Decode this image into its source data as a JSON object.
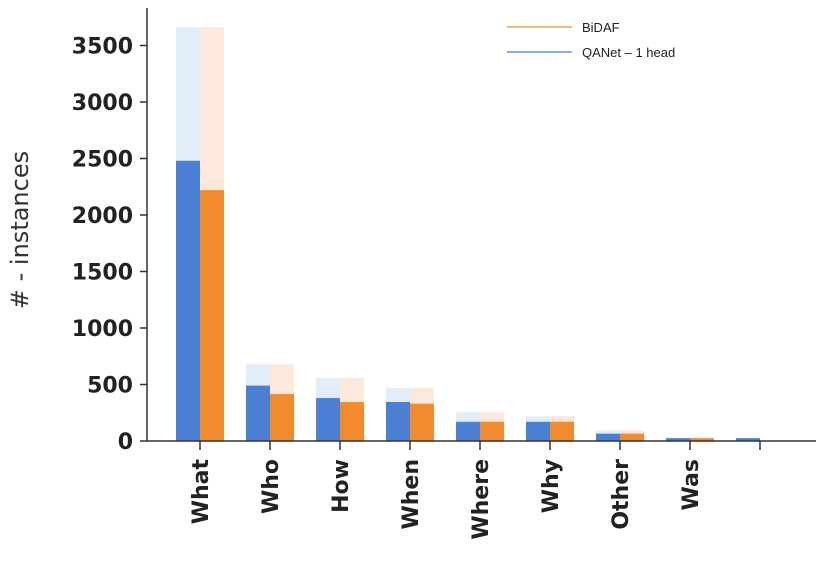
{
  "chart_data": {
    "type": "bar",
    "ylabel": "# - instances",
    "xlabel": "",
    "ylim": [
      0,
      3750
    ],
    "yticks": [
      0,
      500,
      1000,
      1500,
      2000,
      2500,
      3000,
      3500
    ],
    "ytick_labels": [
      "0",
      "500",
      "1000",
      "1500",
      "2000",
      "2500",
      "3000",
      "3500"
    ],
    "categories": [
      "What",
      "Who",
      "How",
      "When",
      "Where",
      "Why",
      "Other",
      "Was",
      ""
    ],
    "series": [
      {
        "name": "QANet – 1 head",
        "color": "#4a7fd4",
        "light_color": "#e3edf9",
        "values": [
          2480,
          490,
          380,
          345,
          170,
          170,
          65,
          25,
          25
        ],
        "totals": [
          3660,
          680,
          560,
          470,
          255,
          220,
          95,
          30,
          30
        ]
      },
      {
        "name": "BiDAF",
        "color": "#f28a2e",
        "light_color": "#fde8dc",
        "values": [
          2220,
          415,
          345,
          330,
          170,
          170,
          65,
          25,
          0
        ],
        "totals": [
          3660,
          680,
          560,
          470,
          255,
          220,
          95,
          30,
          0
        ]
      }
    ],
    "grid": false,
    "legend_position": "top-right",
    "legend": [
      "BiDAF",
      "QANet – 1 head"
    ]
  }
}
